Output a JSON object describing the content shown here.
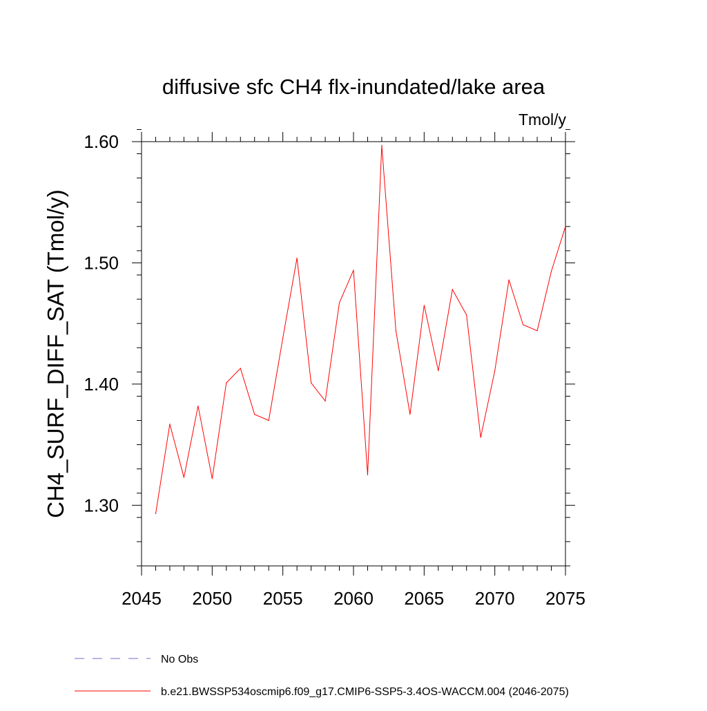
{
  "chart_data": {
    "type": "line",
    "title": "diffusive sfc CH4 flx-inundated/lake area",
    "units": "Tmol/y",
    "xlabel": "",
    "ylabel": "CH4_SURF_DIFF_SAT  (Tmol/y)",
    "xlim": [
      2045,
      2075
    ],
    "ylim": [
      1.25,
      1.6
    ],
    "x_ticks": [
      2045,
      2050,
      2055,
      2060,
      2065,
      2070,
      2075
    ],
    "x_tick_labels": [
      "2045",
      "2050",
      "2055",
      "2060",
      "2065",
      "2070",
      "2075"
    ],
    "y_ticks": [
      1.3,
      1.4,
      1.5,
      1.6
    ],
    "y_tick_labels": [
      "1.30",
      "1.40",
      "1.50",
      "1.60"
    ],
    "x_minor_step": 1,
    "y_minor_step": 0.02,
    "grid": false,
    "series": [
      {
        "name": "b.e21.BWSSP534oscmip6.f09_g17.CMIP6-SSP5-3.4OS-WACCM.004 (2046-2075)",
        "color": "#ff0000",
        "dash": "solid",
        "x": [
          2046,
          2047,
          2048,
          2049,
          2050,
          2051,
          2052,
          2053,
          2054,
          2055,
          2056,
          2057,
          2058,
          2059,
          2060,
          2061,
          2062,
          2063,
          2064,
          2065,
          2066,
          2067,
          2068,
          2069,
          2070,
          2071,
          2072,
          2073,
          2074,
          2075
        ],
        "values": [
          1.293,
          1.367,
          1.323,
          1.382,
          1.322,
          1.401,
          1.413,
          1.375,
          1.37,
          1.438,
          1.504,
          1.401,
          1.386,
          1.467,
          1.494,
          1.325,
          1.597,
          1.444,
          1.375,
          1.465,
          1.411,
          1.478,
          1.457,
          1.356,
          1.411,
          1.486,
          1.449,
          1.444,
          1.493,
          1.53
        ]
      }
    ],
    "legend": {
      "placement": "bottom-left",
      "entries": [
        {
          "label": "No Obs",
          "color": "#7b68c8",
          "dash": "dashed"
        },
        {
          "label": "b.e21.BWSSP534oscmip6.f09_g17.CMIP6-SSP5-3.4OS-WACCM.004 (2046-2075)",
          "color": "#ff0000",
          "dash": "solid"
        }
      ]
    }
  }
}
